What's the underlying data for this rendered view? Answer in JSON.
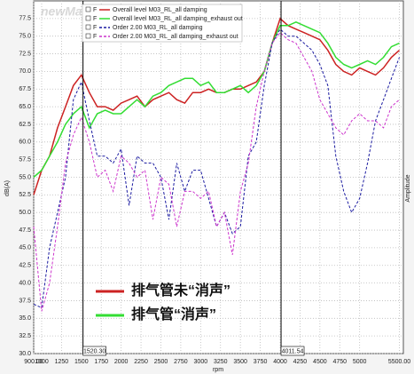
{
  "chart_data": {
    "type": "line",
    "watermark": "newMaker",
    "x_label": "rpm",
    "y_label": "dB(A)",
    "y2_label": "Amplitude",
    "legend_flag": "F",
    "grid": true,
    "legend_position": "top",
    "xlim": [
      900,
      5550
    ],
    "ylim": [
      30,
      80
    ],
    "xticks": [
      {
        "value": 900,
        "label": "900.00"
      },
      1000,
      1250,
      1500,
      1750,
      2000,
      2250,
      2500,
      2750,
      3000,
      3250,
      3500,
      3750,
      4000,
      4250,
      4500,
      4750,
      5000,
      {
        "value": 5500,
        "label": "5500.00"
      }
    ],
    "yticks": [
      {
        "value": 30,
        "label": "30.0"
      },
      {
        "value": 32.5,
        "label": "32.5"
      },
      {
        "value": 35,
        "label": "35.0"
      },
      {
        "value": 37.5,
        "label": "37.5"
      },
      {
        "value": 40,
        "label": "40.0"
      },
      {
        "value": 42.5,
        "label": "42.5"
      },
      {
        "value": 45,
        "label": "45.0"
      },
      {
        "value": 47.5,
        "label": "47.5"
      },
      {
        "value": 50,
        "label": "50.0"
      },
      {
        "value": 52.5,
        "label": "52.5"
      },
      {
        "value": 55,
        "label": "55.0"
      },
      {
        "value": 57.5,
        "label": "57.5"
      },
      {
        "value": 60,
        "label": "60.0"
      },
      {
        "value": 62.5,
        "label": "62.5"
      },
      {
        "value": 65,
        "label": "65.0"
      },
      {
        "value": 67.5,
        "label": "67.5"
      },
      {
        "value": 70,
        "label": "70.0"
      },
      {
        "value": 72.5,
        "label": "72.5"
      },
      {
        "value": 75,
        "label": "75.0"
      },
      {
        "value": 77.5,
        "label": "77.5"
      }
    ],
    "cursors": [
      {
        "value": 1520.3,
        "label": "1520.30"
      },
      {
        "value": 4011.54,
        "label": "4011.54"
      }
    ],
    "x": [
      900,
      1000,
      1100,
      1200,
      1300,
      1400,
      1500,
      1600,
      1700,
      1800,
      1900,
      2000,
      2100,
      2200,
      2300,
      2400,
      2500,
      2600,
      2700,
      2800,
      2900,
      3000,
      3100,
      3200,
      3300,
      3400,
      3500,
      3600,
      3700,
      3800,
      3900,
      4000,
      4100,
      4200,
      4300,
      4400,
      4500,
      4600,
      4700,
      4800,
      4900,
      5000,
      5100,
      5200,
      5300,
      5400,
      5500
    ],
    "series": [
      {
        "name": "Overall level M03_RL_all damping",
        "color": "#cc2222",
        "style": "solid",
        "values": [
          52.5,
          56,
          58,
          62,
          65,
          68,
          69.5,
          67,
          65,
          65,
          64.5,
          65.5,
          66,
          66.5,
          65,
          66,
          66.5,
          67,
          66,
          65.5,
          67,
          67,
          67.5,
          67,
          67,
          67.5,
          67.5,
          68,
          68.5,
          70,
          74,
          77.5,
          76.5,
          76,
          75.5,
          75,
          74.5,
          73,
          71,
          70,
          69.5,
          70.5,
          70,
          69.5,
          70.5,
          72,
          73
        ]
      },
      {
        "name": "Overall level M03_RL_all damping_exhaust out",
        "color": "#33dd33",
        "style": "solid",
        "values": [
          55,
          56,
          58,
          60,
          62.5,
          64,
          65,
          62,
          64,
          64.5,
          64,
          64,
          65,
          66,
          65,
          66.5,
          67,
          68,
          68.5,
          69,
          69,
          68,
          68.5,
          67,
          67,
          67.5,
          68,
          67,
          68,
          70,
          74,
          76.5,
          76.5,
          77,
          76.5,
          76,
          75.5,
          74,
          72,
          71,
          70.5,
          71,
          71.5,
          71,
          72,
          73.5,
          74
        ]
      },
      {
        "name": "Order 2.00 M03_RL_all damping",
        "color": "#1a1aa0",
        "style": "dashed",
        "values": [
          37,
          36.5,
          45,
          50,
          55,
          66,
          68.5,
          63,
          58,
          58,
          57,
          59,
          51,
          58,
          57,
          57,
          55,
          49,
          57,
          53,
          56,
          56,
          52,
          48,
          50,
          47,
          48,
          58,
          60,
          68,
          74,
          76,
          75,
          75,
          74,
          73,
          71,
          68,
          58,
          53,
          50,
          52,
          57,
          63,
          66,
          69,
          72
        ]
      },
      {
        "name": "Order 2.00 M03_RL_all damping_exhaust out",
        "color": "#cc33cc",
        "style": "dashed",
        "values": [
          48,
          36,
          40,
          48,
          57,
          61,
          63.5,
          60,
          55,
          56,
          53,
          58,
          57,
          55,
          56,
          49,
          55,
          54,
          48,
          53,
          53,
          52,
          53,
          48,
          50,
          44,
          53,
          57,
          65,
          70,
          74,
          75.5,
          74.5,
          74,
          72,
          70,
          66,
          64,
          62,
          61,
          63,
          64,
          63,
          63,
          62,
          65,
          66
        ]
      }
    ],
    "annotations": [
      {
        "text": "排气管未“消声”",
        "color": "#cc2222"
      },
      {
        "text": "排气管“消声”",
        "color": "#33dd33"
      }
    ]
  }
}
